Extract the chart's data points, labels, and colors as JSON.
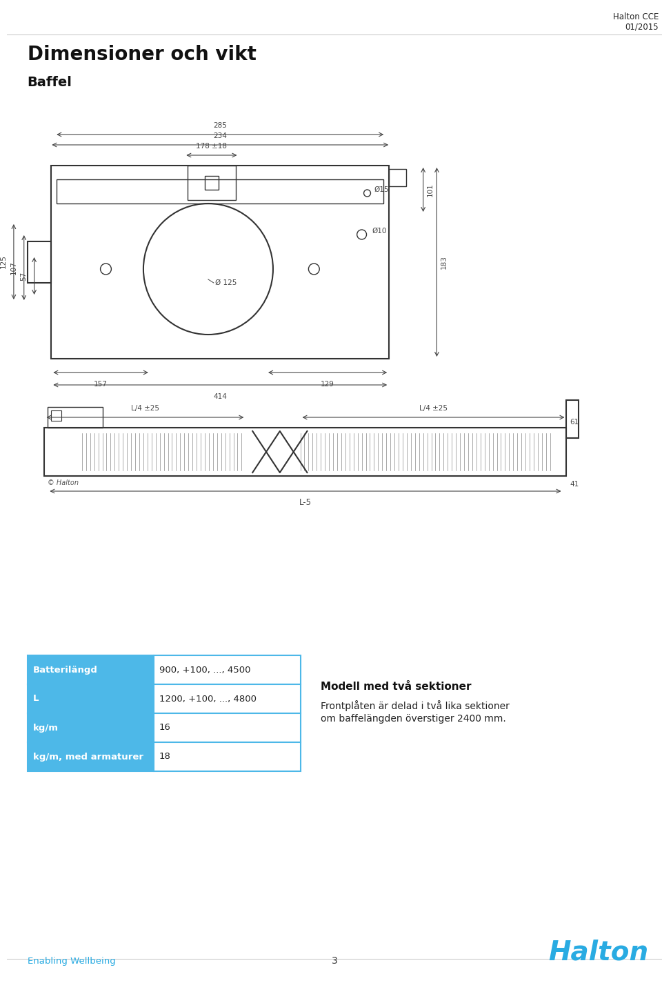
{
  "page_title": "Dimensioner och vikt",
  "page_subtitle": "Baffel",
  "header_right_line1": "Halton CCE",
  "header_right_line2": "01/2015",
  "footer_left": "Enabling Wellbeing",
  "footer_center": "3",
  "footer_logo": "Halton",
  "table_rows": [
    {
      "label": "Batterilängd",
      "value": "900, +100, ..., 4500"
    },
    {
      "label": "L",
      "value": "1200, +100, ..., 4800"
    },
    {
      "label": "kg/m",
      "value": "16"
    },
    {
      "label": "kg/m, med armaturer",
      "value": "18"
    }
  ],
  "side_title": "Modell med två sektioner",
  "side_text_line1": "Frontplåten är delad i två lika sektioner",
  "side_text_line2": "om baffelängden överstiger 2400 mm.",
  "table_header_color": "#4db8e8",
  "table_border_color": "#4db8e8",
  "table_text_color_header": "#ffffff",
  "table_text_color_value": "#222222",
  "bg_color": "#ffffff",
  "halton_color": "#29abe2",
  "enabling_color": "#29abe2",
  "dim_color": "#555555",
  "drawing_color": "#333333"
}
